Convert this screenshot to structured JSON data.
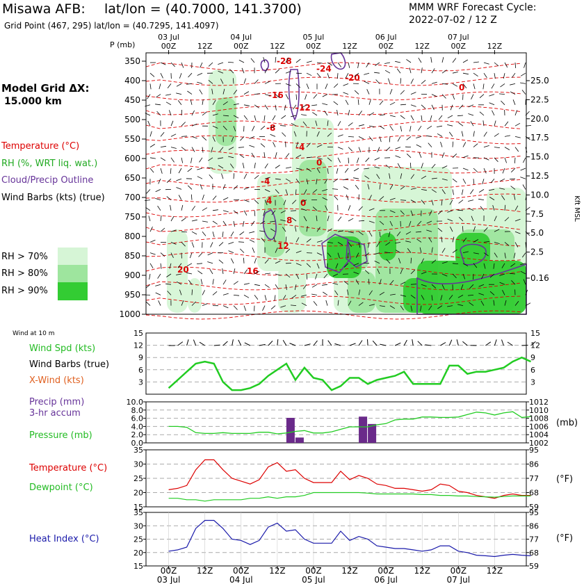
{
  "header": {
    "station": "Misawa AFB:",
    "latlon": "lat/lon = (40.7000, 141.3700)",
    "gridpoint": "Grid Point (467, 295)  lat/lon = (40.7295, 141.4097)",
    "cycle_title": "MMM WRF Forecast Cycle:",
    "cycle_value": "2022-07-02 / 12  Z"
  },
  "sounding_legend": {
    "grid_label": "Model Grid ΔX:",
    "grid_value": "15.000 km",
    "temperature": "Temperature (°C)",
    "rh": "RH (%, WRT liq. wat.)",
    "cloud": "Cloud/Precip Outline",
    "wind": "Wind Barbs (kts) (true)",
    "rh70": "RH > 70%",
    "rh80": "RH > 80%",
    "rh90": "RH > 90%"
  },
  "colors": {
    "rh70": "#d6f5d6",
    "rh80": "#9ee59e",
    "rh90": "#33cc33",
    "temperature": "#dd0000",
    "cloud": "#663399",
    "wind_green": "#22cc22",
    "heat_blue": "#1a1aaa",
    "precip_bar": "#6a2a8a"
  },
  "time_axis": {
    "hour_labels": [
      "00Z",
      "12Z",
      "00Z",
      "12Z",
      "00Z",
      "12Z",
      "00Z",
      "12Z",
      "00Z",
      "12Z"
    ],
    "day_labels": [
      "03 Jul",
      "04 Jul",
      "05 Jul",
      "06 Jul",
      "07 Jul"
    ]
  },
  "sounding": {
    "p_axis_label": "P (mb)",
    "pressure_levels": [
      "350",
      "400",
      "450",
      "500",
      "550",
      "600",
      "650",
      "700",
      "750",
      "800",
      "850",
      "900",
      "950",
      "1000"
    ],
    "height_levels": [
      "25.0",
      "22.5",
      "20.0",
      "17.5",
      "15.0",
      "12.5",
      "10.0",
      "7.5",
      "5.0",
      "2.5",
      "0.16"
    ],
    "height_axis_label": "Kft MSL",
    "temp_labels": [
      "-28",
      "-24",
      "-20",
      "-16",
      "-12",
      "-8",
      "-4",
      "0",
      "-4",
      "0",
      "4",
      "8",
      "12",
      "16",
      "20",
      "0"
    ]
  },
  "wind_panel": {
    "title": "Wind at 10 m",
    "spd_label": "Wind Spd (kts)",
    "barbs_label": "Wind Barbs (true)",
    "xwind_label": "X-Wind (kts)",
    "y_ticks": [
      "15",
      "12",
      "9",
      "6",
      "3"
    ]
  },
  "precip_panel": {
    "precip_label": "Precip (mm)",
    "accum_label": "3-hr accum",
    "pressure_label": "Pressure (mb)",
    "left_ticks": [
      "10.0",
      "8.0",
      "6.0",
      "4.0",
      "2.0",
      "0.0"
    ],
    "right_ticks": [
      "1012",
      "1010",
      "1008",
      "1006",
      "1004",
      "1002"
    ],
    "unit": "(mb)"
  },
  "temp_panel": {
    "temp_label": "Temperature (°C)",
    "dew_label": "Dewpoint (°C)",
    "left_ticks": [
      "35",
      "30",
      "25",
      "20",
      "15"
    ],
    "right_ticks": [
      "95",
      "86",
      "77",
      "68",
      "59"
    ],
    "unit": "(°F)"
  },
  "heat_panel": {
    "label": "Heat Index (°C)",
    "left_ticks": [
      "35",
      "30",
      "25",
      "20",
      "15"
    ],
    "right_ticks": [
      "95",
      "86",
      "77",
      "68",
      "59"
    ],
    "unit": "(°F)"
  },
  "chart_data": [
    {
      "type": "line",
      "title": "Wind at 10 m",
      "x": [
        0,
        3,
        6,
        9,
        12,
        15,
        18,
        21,
        24,
        27,
        30,
        33,
        36,
        39,
        42,
        45,
        48,
        51,
        54,
        57,
        60,
        63,
        66,
        69,
        72,
        75,
        78,
        81,
        84,
        87,
        90,
        93,
        96,
        99,
        102,
        105,
        108,
        111,
        114,
        117,
        120
      ],
      "series": [
        {
          "name": "Wind Spd (kts)",
          "values": [
            1.5,
            3.5,
            5.5,
            7.5,
            8,
            7.5,
            3,
            1,
            1,
            1.5,
            2.5,
            4.5,
            6,
            7.5,
            3.5,
            6.5,
            4,
            3.5,
            1,
            2,
            4,
            4,
            2.5,
            3.5,
            4,
            4.5,
            5.5,
            2.5,
            2.5,
            2.5,
            2.5,
            7,
            7,
            5,
            5.5,
            5.5,
            6,
            6.5,
            8,
            9,
            8
          ]
        }
      ],
      "ylim": [
        0,
        15
      ]
    },
    {
      "type": "bar",
      "title": "Precip (mm) 3-hr accum",
      "x": [
        40.5,
        43.5,
        64.5,
        67.5
      ],
      "values": [
        6.1,
        1.3,
        6.4,
        4.6
      ],
      "ylim": [
        0,
        10
      ]
    },
    {
      "type": "line",
      "title": "Pressure (mb)",
      "x": [
        0,
        3,
        6,
        9,
        12,
        15,
        18,
        21,
        24,
        27,
        30,
        33,
        36,
        39,
        42,
        45,
        48,
        51,
        54,
        57,
        60,
        63,
        66,
        69,
        72,
        75,
        78,
        81,
        84,
        87,
        90,
        93,
        96,
        99,
        102,
        105,
        108,
        111,
        114,
        117,
        120
      ],
      "series": [
        {
          "name": "Pressure (mb)",
          "values": [
            1006.0,
            1006.0,
            1005.8,
            1004.5,
            1004.3,
            1004.3,
            1004.5,
            1004.3,
            1004.3,
            1004.3,
            1004.6,
            1004.6,
            1004.2,
            1004.4,
            1004.8,
            1005.0,
            1004.4,
            1004.4,
            1004.7,
            1005.3,
            1005.9,
            1005.9,
            1005.9,
            1006.4,
            1006.7,
            1007.6,
            1007.8,
            1007.8,
            1008.3,
            1008.3,
            1008.2,
            1008.2,
            1008.3,
            1008.9,
            1009.5,
            1009.3,
            1008.8,
            1009.3,
            1009.6,
            1008.2,
            1008.4
          ]
        }
      ],
      "ylim": [
        1002,
        1012
      ]
    },
    {
      "type": "line",
      "title": "Temperature / Dewpoint",
      "x": [
        0,
        3,
        6,
        9,
        12,
        15,
        18,
        21,
        24,
        27,
        30,
        33,
        36,
        39,
        42,
        45,
        48,
        51,
        54,
        57,
        60,
        63,
        66,
        69,
        72,
        75,
        78,
        81,
        84,
        87,
        90,
        93,
        96,
        99,
        102,
        105,
        108,
        111,
        114,
        117,
        120
      ],
      "series": [
        {
          "name": "Temperature (°C)",
          "values": [
            21,
            21.5,
            22.5,
            28,
            31.5,
            31.5,
            28,
            25,
            24,
            23,
            24.5,
            29,
            30.5,
            27.5,
            28,
            25,
            23.5,
            23.5,
            23.5,
            27.5,
            24.5,
            26,
            25,
            23,
            22.5,
            21.5,
            21.5,
            21,
            20.5,
            21,
            23,
            22.5,
            20.5,
            20,
            19,
            18.5,
            18,
            19,
            19.5,
            19,
            19
          ]
        },
        {
          "name": "Dewpoint (°C)",
          "values": [
            18,
            18,
            17.5,
            17.5,
            17,
            17.5,
            17.5,
            17.5,
            17.5,
            18,
            18,
            18.5,
            18,
            18.5,
            18.5,
            19,
            20,
            20,
            20,
            20,
            20,
            20,
            19.8,
            19.5,
            19.5,
            19.5,
            19.5,
            19.5,
            19.3,
            19.3,
            19,
            19,
            18.8,
            18.8,
            18.6,
            18.5,
            18.4,
            18.6,
            18.8,
            18.8,
            18.8
          ]
        }
      ],
      "ylim": [
        15,
        35
      ]
    },
    {
      "type": "line",
      "title": "Heat Index",
      "x": [
        0,
        3,
        6,
        9,
        12,
        15,
        18,
        21,
        24,
        27,
        30,
        33,
        36,
        39,
        42,
        45,
        48,
        51,
        54,
        57,
        60,
        63,
        66,
        69,
        72,
        75,
        78,
        81,
        84,
        87,
        90,
        93,
        96,
        99,
        102,
        105,
        108,
        111,
        114,
        117,
        120
      ],
      "series": [
        {
          "name": "Heat Index (°C)",
          "values": [
            20.5,
            21,
            22,
            29,
            32,
            32,
            29,
            25,
            24.5,
            23,
            24.5,
            29.5,
            31,
            28,
            28.5,
            25,
            23.5,
            23.5,
            23.5,
            28,
            24.5,
            26,
            25,
            22.5,
            22,
            21.5,
            21.5,
            21,
            20.5,
            21,
            22.5,
            22.5,
            20.5,
            20,
            19,
            18.8,
            18.5,
            19,
            19.3,
            19,
            18.8
          ]
        }
      ],
      "ylim": [
        15,
        35
      ]
    }
  ]
}
